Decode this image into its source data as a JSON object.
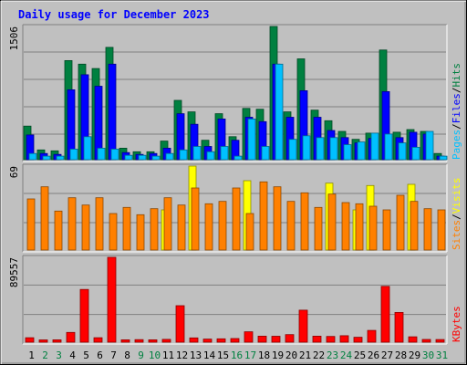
{
  "chart_data": {
    "type": "bar",
    "title": "Daily usage for December 2023",
    "days": [
      "1",
      "2",
      "3",
      "4",
      "5",
      "6",
      "7",
      "8",
      "9",
      "10",
      "11",
      "12",
      "13",
      "14",
      "15",
      "16",
      "17",
      "18",
      "19",
      "20",
      "21",
      "22",
      "23",
      "24",
      "25",
      "26",
      "27",
      "28",
      "29",
      "30",
      "31"
    ],
    "weekend_days": [
      "2",
      "3",
      "9",
      "10",
      "16",
      "17",
      "23",
      "24",
      "30",
      "31"
    ],
    "panels": [
      {
        "id": "hits-files-pages",
        "ymax_label": "1506",
        "ymax": 1506,
        "labels": [
          "Pages",
          "Files",
          "Hits"
        ],
        "series": [
          {
            "name": "Hits",
            "color": "#008040",
            "values": [
              380,
              110,
              100,
              1120,
              1080,
              1030,
              1270,
              130,
              90,
              90,
              210,
              670,
              540,
              220,
              520,
              260,
              580,
              570,
              1506,
              540,
              1140,
              560,
              440,
              320,
              230,
              300,
              1240,
              310,
              340,
              320,
              70
            ]
          },
          {
            "name": "Files",
            "color": "#0000ff",
            "values": [
              280,
              70,
              60,
              790,
              960,
              830,
              1080,
              80,
              60,
              70,
              130,
              520,
              400,
              150,
              460,
              220,
              480,
              430,
              1080,
              480,
              780,
              480,
              330,
              250,
              190,
              240,
              770,
              250,
              310,
              290,
              40
            ]
          },
          {
            "name": "Pages",
            "color": "#00c0ff",
            "values": [
              70,
              40,
              40,
              120,
              260,
              130,
              120,
              50,
              50,
              40,
              70,
              110,
              150,
              90,
              150,
              40,
              460,
              150,
              1080,
              230,
              270,
              250,
              250,
              170,
              200,
              300,
              290,
              190,
              140,
              320,
              40
            ]
          }
        ]
      },
      {
        "id": "visits-sites",
        "ymax_label": "69",
        "ymax": 69,
        "labels": [
          "Sites",
          "Visits"
        ],
        "series": [
          {
            "name": "Visits",
            "color": "#ffff00",
            "values": [
              0,
              0,
              0,
              0,
              0,
              0,
              0,
              0,
              0,
              0,
              33,
              0,
              69,
              0,
              0,
              0,
              57,
              0,
              0,
              0,
              0,
              0,
              55,
              0,
              33,
              53,
              0,
              0,
              54,
              0,
              0
            ]
          },
          {
            "name": "Sites",
            "color": "#ff8000",
            "values": [
              42,
              52,
              32,
              43,
              37,
              43,
              30,
              35,
              29,
              34,
              43,
              37,
              51,
              38,
              40,
              51,
              30,
              56,
              52,
              40,
              47,
              35,
              46,
              39,
              38,
              36,
              33,
              45,
              40,
              34,
              33
            ]
          }
        ]
      },
      {
        "id": "kbytes",
        "ymax_label": "89557",
        "ymax": 89557,
        "labels": [
          "KBytes"
        ],
        "series": [
          {
            "name": "KBytes",
            "color": "#ff0000",
            "values": [
              4700,
              2400,
              2500,
              10300,
              55700,
              4700,
              89557,
              2500,
              2700,
              2500,
              3000,
              38500,
              4500,
              3300,
              3600,
              3900,
              11000,
              6400,
              6300,
              8000,
              33800,
              6400,
              6100,
              6800,
              5200,
              12400,
              58900,
              31400,
              5700,
              2900,
              2800
            ]
          }
        ]
      }
    ]
  },
  "colors": {
    "background": "#c0c0c0",
    "title": "#0000ff",
    "weekday_label": "#000000",
    "weekend_label": "#008040"
  }
}
